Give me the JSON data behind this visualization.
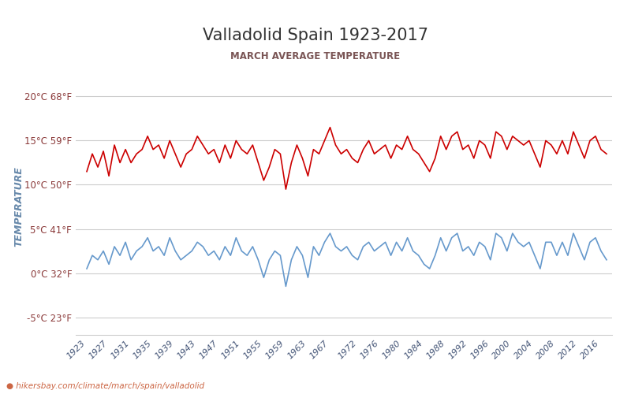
{
  "title": "Valladolid Spain 1923-2017",
  "subtitle": "MARCH AVERAGE TEMPERATURE",
  "ylabel": "TEMPERATURE",
  "xlabel_url": "hikersbay.com/climate/march/spain/valladolid",
  "yticks_celsius": [
    20,
    15,
    10,
    5,
    0,
    -5
  ],
  "yticks_fahrenheit": [
    68,
    59,
    50,
    41,
    32,
    23
  ],
  "ylim": [
    -7,
    22
  ],
  "xlim": [
    1921,
    2018
  ],
  "years": [
    1923,
    1924,
    1925,
    1926,
    1927,
    1928,
    1929,
    1930,
    1931,
    1932,
    1933,
    1934,
    1935,
    1936,
    1937,
    1938,
    1939,
    1940,
    1941,
    1942,
    1943,
    1944,
    1945,
    1946,
    1947,
    1948,
    1949,
    1950,
    1951,
    1952,
    1953,
    1954,
    1955,
    1956,
    1957,
    1958,
    1959,
    1960,
    1961,
    1962,
    1963,
    1964,
    1965,
    1966,
    1967,
    1968,
    1969,
    1970,
    1971,
    1972,
    1973,
    1974,
    1975,
    1976,
    1977,
    1978,
    1979,
    1980,
    1981,
    1982,
    1983,
    1984,
    1985,
    1986,
    1987,
    1988,
    1989,
    1990,
    1991,
    1992,
    1993,
    1994,
    1995,
    1996,
    1997,
    1998,
    1999,
    2000,
    2001,
    2002,
    2003,
    2004,
    2005,
    2006,
    2007,
    2008,
    2009,
    2010,
    2011,
    2012,
    2013,
    2014,
    2015,
    2016,
    2017
  ],
  "day_temps": [
    11.5,
    13.5,
    12.0,
    13.8,
    11.0,
    14.5,
    12.5,
    14.0,
    12.5,
    13.5,
    14.0,
    15.5,
    14.0,
    14.5,
    13.0,
    15.0,
    13.5,
    12.0,
    13.5,
    14.0,
    15.5,
    14.5,
    13.5,
    14.0,
    12.5,
    14.5,
    13.0,
    15.0,
    14.0,
    13.5,
    14.5,
    12.5,
    10.5,
    12.0,
    14.0,
    13.5,
    9.5,
    12.5,
    14.5,
    13.0,
    11.0,
    14.0,
    13.5,
    15.0,
    16.5,
    14.5,
    13.5,
    14.0,
    13.0,
    12.5,
    14.0,
    15.0,
    13.5,
    14.0,
    14.5,
    13.0,
    14.5,
    14.0,
    15.5,
    14.0,
    13.5,
    12.5,
    11.5,
    13.0,
    15.5,
    14.0,
    15.5,
    16.0,
    14.0,
    14.5,
    13.0,
    15.0,
    14.5,
    13.0,
    16.0,
    15.5,
    14.0,
    15.5,
    15.0,
    14.5,
    15.0,
    13.5,
    12.0,
    15.0,
    14.5,
    13.5,
    15.0,
    13.5,
    16.0,
    14.5,
    13.0,
    15.0,
    15.5,
    14.0,
    13.5
  ],
  "night_temps": [
    0.5,
    2.0,
    1.5,
    2.5,
    1.0,
    3.0,
    2.0,
    3.5,
    1.5,
    2.5,
    3.0,
    4.0,
    2.5,
    3.0,
    2.0,
    4.0,
    2.5,
    1.5,
    2.0,
    2.5,
    3.5,
    3.0,
    2.0,
    2.5,
    1.5,
    3.0,
    2.0,
    4.0,
    2.5,
    2.0,
    3.0,
    1.5,
    -0.5,
    1.5,
    2.5,
    2.0,
    -1.5,
    1.5,
    3.0,
    2.0,
    -0.5,
    3.0,
    2.0,
    3.5,
    4.5,
    3.0,
    2.5,
    3.0,
    2.0,
    1.5,
    3.0,
    3.5,
    2.5,
    3.0,
    3.5,
    2.0,
    3.5,
    2.5,
    4.0,
    2.5,
    2.0,
    1.0,
    0.5,
    2.0,
    4.0,
    2.5,
    4.0,
    4.5,
    2.5,
    3.0,
    2.0,
    3.5,
    3.0,
    1.5,
    4.5,
    4.0,
    2.5,
    4.5,
    3.5,
    3.0,
    3.5,
    2.0,
    0.5,
    3.5,
    3.5,
    2.0,
    3.5,
    2.0,
    4.5,
    3.0,
    1.5,
    3.5,
    4.0,
    2.5,
    1.5
  ],
  "day_color": "#cc0000",
  "night_color": "#6699cc",
  "grid_color": "#cccccc",
  "bg_color": "#ffffff",
  "title_color": "#333333",
  "subtitle_color": "#666666",
  "tick_label_color": "#8B3A3A",
  "ylabel_color": "#6688aa",
  "url_color": "#cc6644",
  "legend_night_color": "#6699cc",
  "legend_day_color": "#cc0000"
}
